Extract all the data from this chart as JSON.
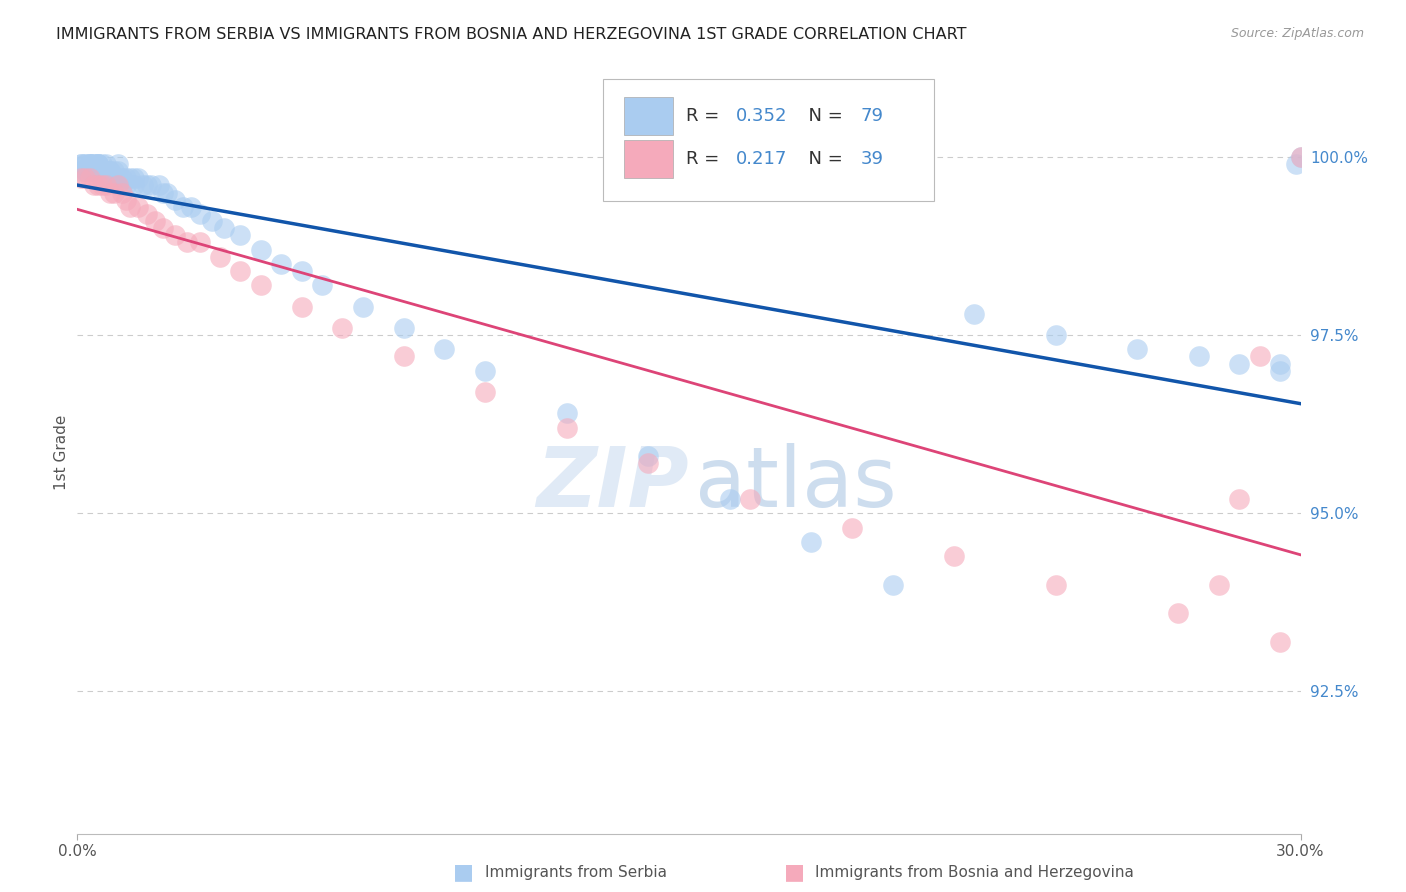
{
  "title": "IMMIGRANTS FROM SERBIA VS IMMIGRANTS FROM BOSNIA AND HERZEGOVINA 1ST GRADE CORRELATION CHART",
  "source": "Source: ZipAtlas.com",
  "ylabel": "1st Grade",
  "ytick_labels": [
    "92.5%",
    "95.0%",
    "97.5%",
    "100.0%"
  ],
  "ytick_values": [
    0.925,
    0.95,
    0.975,
    1.0
  ],
  "xlim": [
    0.0,
    0.3
  ],
  "ylim": [
    0.905,
    1.012
  ],
  "serbia_color": "#aaccf0",
  "bosnia_color": "#f5aabb",
  "serbia_line_color": "#1155aa",
  "bosnia_line_color": "#dd4477",
  "background_color": "#ffffff",
  "grid_color": "#cccccc",
  "title_color": "#222222",
  "axis_label_color": "#555555",
  "right_tick_color": "#4488cc",
  "serbia_x": [
    0.001,
    0.001,
    0.001,
    0.002,
    0.002,
    0.002,
    0.002,
    0.003,
    0.003,
    0.003,
    0.003,
    0.003,
    0.004,
    0.004,
    0.004,
    0.004,
    0.005,
    0.005,
    0.005,
    0.005,
    0.005,
    0.006,
    0.006,
    0.006,
    0.006,
    0.007,
    0.007,
    0.007,
    0.008,
    0.008,
    0.008,
    0.009,
    0.009,
    0.01,
    0.01,
    0.01,
    0.011,
    0.011,
    0.012,
    0.012,
    0.013,
    0.014,
    0.014,
    0.015,
    0.016,
    0.017,
    0.018,
    0.02,
    0.021,
    0.022,
    0.024,
    0.026,
    0.028,
    0.03,
    0.033,
    0.036,
    0.04,
    0.045,
    0.05,
    0.055,
    0.06,
    0.07,
    0.08,
    0.09,
    0.1,
    0.12,
    0.14,
    0.16,
    0.18,
    0.2,
    0.22,
    0.24,
    0.26,
    0.275,
    0.285,
    0.295,
    0.299,
    0.3,
    0.295
  ],
  "serbia_y": [
    0.998,
    0.999,
    0.999,
    0.998,
    0.999,
    0.998,
    0.999,
    0.999,
    0.999,
    0.998,
    0.999,
    0.999,
    0.999,
    0.999,
    0.998,
    0.998,
    0.999,
    0.999,
    0.998,
    0.999,
    0.999,
    0.998,
    0.999,
    0.998,
    0.997,
    0.999,
    0.998,
    0.997,
    0.998,
    0.998,
    0.997,
    0.997,
    0.998,
    0.998,
    0.997,
    0.999,
    0.997,
    0.996,
    0.997,
    0.996,
    0.997,
    0.996,
    0.997,
    0.997,
    0.996,
    0.996,
    0.996,
    0.996,
    0.995,
    0.995,
    0.994,
    0.993,
    0.993,
    0.992,
    0.991,
    0.99,
    0.989,
    0.987,
    0.985,
    0.984,
    0.982,
    0.979,
    0.976,
    0.973,
    0.97,
    0.964,
    0.958,
    0.952,
    0.946,
    0.94,
    0.978,
    0.975,
    0.973,
    0.972,
    0.971,
    0.97,
    0.999,
    1.0,
    0.971
  ],
  "bosnia_x": [
    0.001,
    0.002,
    0.003,
    0.004,
    0.005,
    0.006,
    0.007,
    0.008,
    0.009,
    0.01,
    0.011,
    0.012,
    0.013,
    0.015,
    0.017,
    0.019,
    0.021,
    0.024,
    0.027,
    0.03,
    0.035,
    0.04,
    0.045,
    0.055,
    0.065,
    0.08,
    0.1,
    0.12,
    0.14,
    0.165,
    0.19,
    0.215,
    0.24,
    0.27,
    0.295,
    0.3,
    0.29,
    0.285,
    0.28
  ],
  "bosnia_y": [
    0.997,
    0.997,
    0.997,
    0.996,
    0.996,
    0.996,
    0.996,
    0.995,
    0.995,
    0.996,
    0.995,
    0.994,
    0.993,
    0.993,
    0.992,
    0.991,
    0.99,
    0.989,
    0.988,
    0.988,
    0.986,
    0.984,
    0.982,
    0.979,
    0.976,
    0.972,
    0.967,
    0.962,
    0.957,
    0.952,
    0.948,
    0.944,
    0.94,
    0.936,
    0.932,
    1.0,
    0.972,
    0.952,
    0.94
  ],
  "watermark_zip_color": "#dde8f5",
  "watermark_atlas_color": "#b8cfe8"
}
